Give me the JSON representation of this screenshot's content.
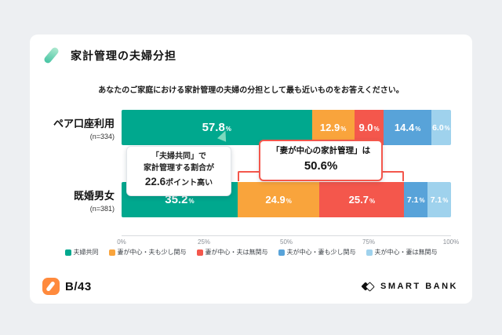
{
  "header": {
    "title": "家計管理の夫婦分担"
  },
  "chart": {
    "question": "あなたのご家庭における家計管理の夫婦の分担として最も近いものをお答えください。"
  },
  "chart_data": {
    "type": "bar",
    "orientation": "horizontal",
    "stacked": true,
    "unit": "%",
    "xlim": [
      0,
      100
    ],
    "x_ticks": [
      "0%",
      "25%",
      "50%",
      "75%",
      "100%"
    ],
    "grid": false,
    "legend_position": "bottom",
    "categories": [
      {
        "name": "ペア口座利用",
        "n": "(n=334)"
      },
      {
        "name": "既婚男女",
        "n": "(n=381)"
      }
    ],
    "segments": [
      {
        "label": "夫婦共同",
        "color": "#00A88E"
      },
      {
        "label": "妻が中心・夫も少し関与",
        "color": "#F9A43C"
      },
      {
        "label": "妻が中心・夫は無関与",
        "color": "#F4574C"
      },
      {
        "label": "夫が中心・妻も少し関与",
        "color": "#58A3D9"
      },
      {
        "label": "夫が中心・妻は無関与",
        "color": "#9FD2ED"
      }
    ],
    "series": [
      {
        "category": "ペア口座利用",
        "values": [
          57.8,
          12.9,
          9.0,
          14.4,
          6.0
        ],
        "labels": [
          "57.8",
          "12.9",
          "9.0",
          "14.4",
          "6.0"
        ]
      },
      {
        "category": "既婚男女",
        "values": [
          35.2,
          24.9,
          25.7,
          7.1,
          7.1
        ],
        "labels": [
          "35.2",
          "24.9",
          "25.7",
          "7.1",
          "7.1"
        ]
      }
    ],
    "annotations": [
      {
        "id": "joint-management-gap",
        "lines": [
          "「夫婦共同」で",
          "家計管理する割合が"
        ],
        "value": "22.6",
        "suffix": "ポイント高い"
      },
      {
        "id": "wife-centered-total",
        "line": "「妻が中心の家計管理」は",
        "value": "50.6%",
        "span_percent": [
          35.2,
          85.8
        ]
      }
    ]
  },
  "colors": {
    "accent_teal": "#00A88E",
    "annotation_red": "#F4574C",
    "arrow_mint": "#7CD9BE",
    "title_icon_mint": "#3FC2A0",
    "b43_orange": "#FF8A3D"
  },
  "footer": {
    "b43_label": "B/43",
    "smartbank_label": "SMART BANK"
  }
}
